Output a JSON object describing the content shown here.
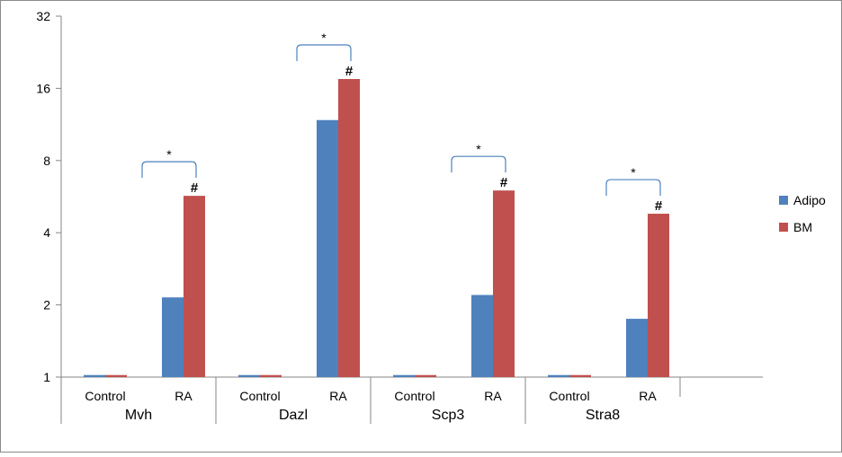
{
  "chart_data": {
    "type": "bar",
    "title": "",
    "xlabel": "",
    "ylabel": "",
    "yscale": "log2",
    "ylim": [
      1,
      32
    ],
    "yticks": [
      1,
      2,
      4,
      8,
      16,
      32
    ],
    "groups": [
      "Mvh",
      "Dazl",
      "Scp3",
      "Stra8"
    ],
    "subcategories": [
      "Control",
      "RA"
    ],
    "series": [
      {
        "name": "Adipo",
        "color": "#4F81BD",
        "values": [
          [
            1.02,
            2.15
          ],
          [
            1.02,
            11.8
          ],
          [
            1.02,
            2.2
          ],
          [
            1.02,
            1.75
          ]
        ]
      },
      {
        "name": "BM",
        "color": "#C0504D",
        "values": [
          [
            1.02,
            5.7
          ],
          [
            1.02,
            17.5
          ],
          [
            1.02,
            6.0
          ],
          [
            1.02,
            4.8
          ]
        ]
      }
    ],
    "annotations": {
      "hash_label": "#",
      "bracket_label": "*",
      "hash_groups": [
        0,
        1,
        2,
        3
      ],
      "bracket_groups": [
        0,
        1,
        2,
        3
      ]
    },
    "legend": {
      "position": "right"
    },
    "grid": false
  }
}
